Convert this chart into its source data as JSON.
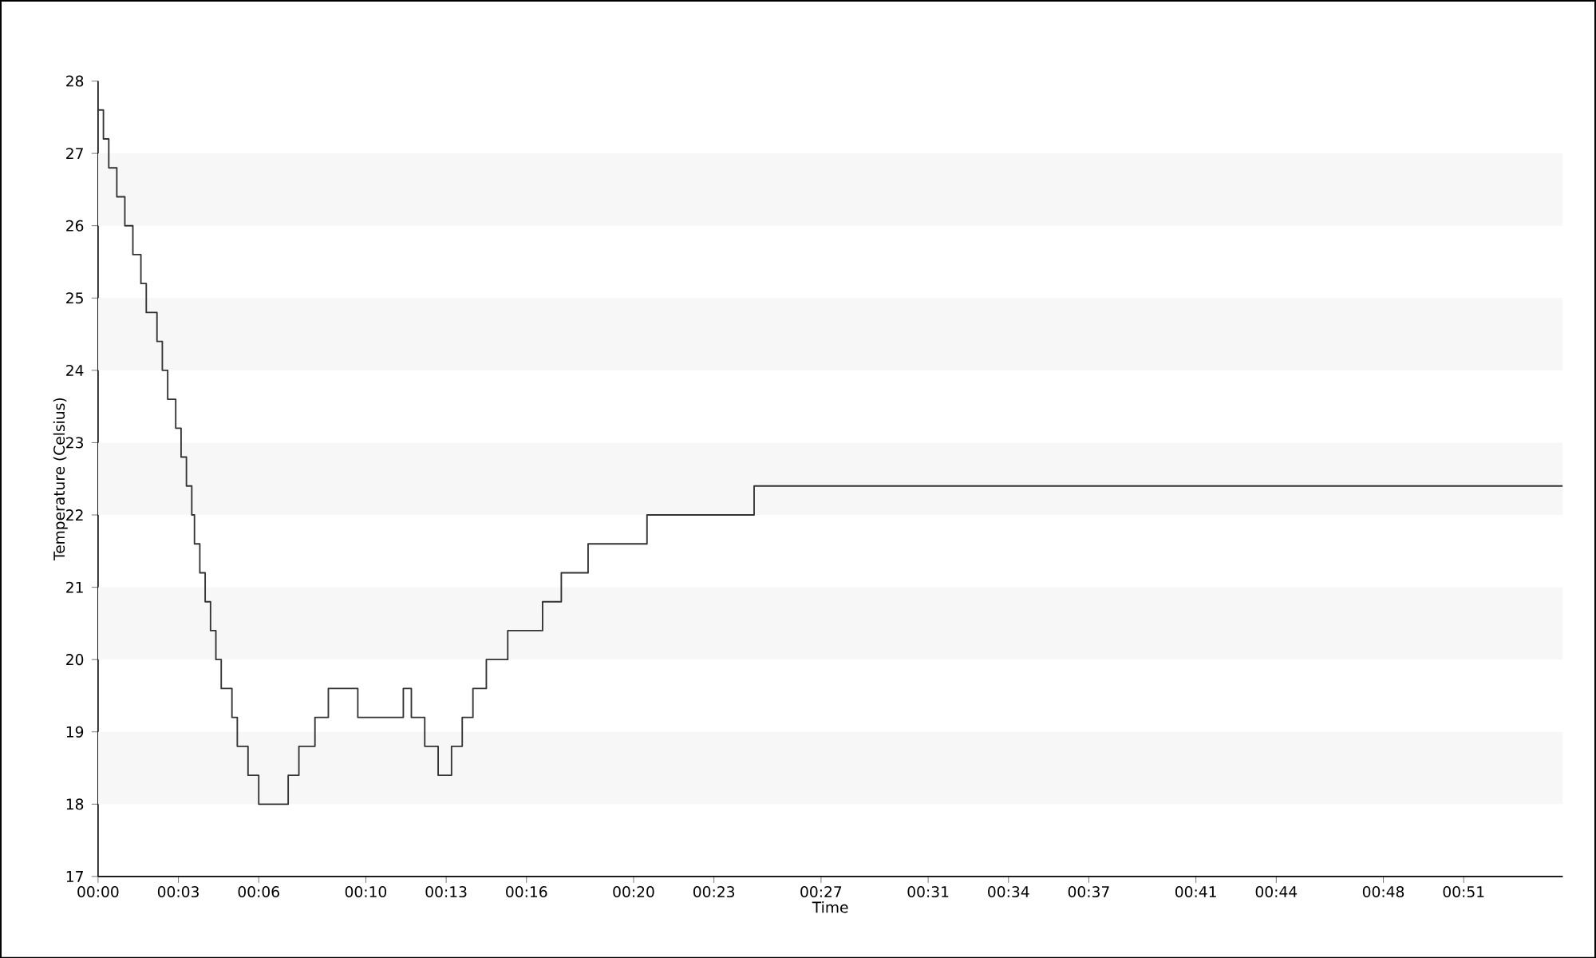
{
  "chart_data": {
    "type": "step",
    "xlabel": "Time",
    "ylabel": "Temperature (Celsius)",
    "x": [
      0,
      0.2,
      0.4,
      0.7,
      1.0,
      1.3,
      1.6,
      1.8,
      2.2,
      2.4,
      2.6,
      2.9,
      3.1,
      3.3,
      3.5,
      3.6,
      3.8,
      4.0,
      4.2,
      4.4,
      4.6,
      5.0,
      5.2,
      5.6,
      6.0,
      7.1,
      7.5,
      8.1,
      8.6,
      9.7,
      11.4,
      11.7,
      12.2,
      12.7,
      13.2,
      13.6,
      14.0,
      14.5,
      15.3,
      16.6,
      17.3,
      18.3,
      20.5,
      24.5,
      54.7
    ],
    "series": [
      {
        "color": "#333333",
        "values": [
          27.6,
          27.2,
          26.8,
          26.4,
          26.0,
          25.6,
          25.2,
          24.8,
          24.4,
          24.0,
          23.6,
          23.2,
          22.8,
          22.4,
          22.0,
          21.6,
          21.2,
          20.8,
          20.4,
          20.0,
          19.6,
          19.2,
          18.8,
          18.4,
          18.0,
          18.4,
          18.8,
          19.2,
          19.6,
          19.2,
          19.6,
          19.2,
          18.8,
          18.4,
          18.8,
          19.2,
          19.6,
          20.0,
          20.4,
          20.8,
          21.2,
          21.6,
          22.0,
          22.4,
          22.4
        ]
      }
    ],
    "xlim": [
      0,
      54.7
    ],
    "xticks": [
      {
        "value": 0,
        "label": "00:00"
      },
      {
        "value": 3,
        "label": "00:03"
      },
      {
        "value": 6,
        "label": "00:06"
      },
      {
        "value": 10,
        "label": "00:10"
      },
      {
        "value": 13,
        "label": "00:13"
      },
      {
        "value": 16,
        "label": "00:16"
      },
      {
        "value": 20,
        "label": "00:20"
      },
      {
        "value": 23,
        "label": "00:23"
      },
      {
        "value": 27,
        "label": "00:27"
      },
      {
        "value": 31,
        "label": "00:31"
      },
      {
        "value": 34,
        "label": "00:34"
      },
      {
        "value": 37,
        "label": "00:37"
      },
      {
        "value": 41,
        "label": "00:41"
      },
      {
        "value": 44,
        "label": "00:44"
      },
      {
        "value": 48,
        "label": "00:48"
      },
      {
        "value": 51,
        "label": "00:51"
      }
    ],
    "ylim": [
      17,
      28
    ],
    "yticks": [
      17,
      18,
      19,
      20,
      21,
      22,
      23,
      24,
      25,
      26,
      27,
      28
    ],
    "bands": [
      {
        "axis": "y",
        "from": 18,
        "to": 19,
        "color": "#f7f7f7"
      },
      {
        "axis": "y",
        "from": 20,
        "to": 21,
        "color": "#f7f7f7"
      },
      {
        "axis": "y",
        "from": 22,
        "to": 23,
        "color": "#f7f7f7"
      },
      {
        "axis": "y",
        "from": 24,
        "to": 25,
        "color": "#f7f7f7"
      },
      {
        "axis": "y",
        "from": 26,
        "to": 27,
        "color": "#f7f7f7"
      }
    ],
    "grid": false
  }
}
